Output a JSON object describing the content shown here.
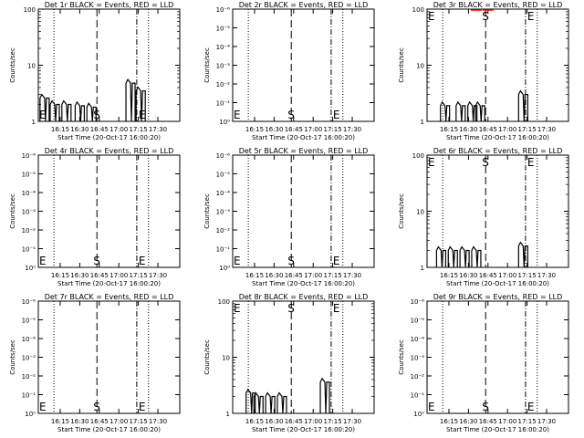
{
  "panels": [
    {
      "title": "Det 1r BLACK = Events, RED = LLD",
      "scale": "log",
      "yticks": [
        "1",
        "10",
        "100"
      ],
      "events": [
        {
          "t": 16.05,
          "v": 2.6
        },
        {
          "t": 16.18,
          "v": 2.0
        },
        {
          "t": 16.33,
          "v": 2.0
        },
        {
          "t": 16.5,
          "v": 1.9
        },
        {
          "t": 16.65,
          "v": 1.8
        },
        {
          "t": 17.15,
          "v": 4.8
        },
        {
          "t": 17.28,
          "v": 3.5
        }
      ],
      "lld": []
    },
    {
      "title": "Det 2r BLACK = Events, RED = LLD",
      "scale": "zero",
      "yticks": [
        "10⁰",
        "10⁻¹",
        "10⁻²",
        "10⁻³",
        "10⁻⁴",
        "10⁻⁵",
        "10⁻⁶"
      ],
      "events": [],
      "lld": []
    },
    {
      "title": "Det 3r BLACK = Events, RED = LLD",
      "scale": "log",
      "yticks": [
        "1",
        "10",
        "100"
      ],
      "events": [
        {
          "t": 16.2,
          "v": 1.9
        },
        {
          "t": 16.4,
          "v": 1.9
        },
        {
          "t": 16.55,
          "v": 1.9
        },
        {
          "t": 16.65,
          "v": 1.9
        },
        {
          "t": 17.2,
          "v": 3.0
        }
      ],
      "lld": [
        {
          "t": 16.6,
          "v": 100
        },
        {
          "t": 16.75,
          "v": 100
        }
      ]
    },
    {
      "title": "Det 4r BLACK = Events, RED = LLD",
      "scale": "zero",
      "yticks": [
        "10⁰",
        "10⁻¹",
        "10⁻²",
        "10⁻³",
        "10⁻⁴",
        "10⁻⁵",
        "10⁻⁶"
      ],
      "events": [],
      "lld": []
    },
    {
      "title": "Det 5r BLACK = Events, RED = LLD",
      "scale": "zero",
      "yticks": [
        "10⁰",
        "10⁻¹",
        "10⁻²",
        "10⁻³",
        "10⁻⁴",
        "10⁻⁵",
        "10⁻⁶"
      ],
      "events": [],
      "lld": []
    },
    {
      "title": "Det 6r BLACK = Events, RED = LLD",
      "scale": "log",
      "yticks": [
        "1",
        "10",
        "100"
      ],
      "events": [
        {
          "t": 16.15,
          "v": 2.0
        },
        {
          "t": 16.3,
          "v": 2.0
        },
        {
          "t": 16.45,
          "v": 2.0
        },
        {
          "t": 16.6,
          "v": 2.0
        },
        {
          "t": 17.2,
          "v": 2.4
        }
      ],
      "lld": []
    },
    {
      "title": "Det 7r BLACK = Events, RED = LLD",
      "scale": "zero",
      "yticks": [
        "10⁰",
        "10⁻¹",
        "10⁻²",
        "10⁻³",
        "10⁻⁴",
        "10⁻⁵",
        "10⁻⁶"
      ],
      "events": [],
      "lld": []
    },
    {
      "title": "Det 8r BLACK = Events, RED = LLD",
      "scale": "log",
      "yticks": [
        "1",
        "10",
        "100"
      ],
      "events": [
        {
          "t": 16.2,
          "v": 2.3
        },
        {
          "t": 16.3,
          "v": 2.0
        },
        {
          "t": 16.45,
          "v": 2.0
        },
        {
          "t": 16.6,
          "v": 2.0
        },
        {
          "t": 17.15,
          "v": 3.6
        }
      ],
      "lld": []
    },
    {
      "title": "Det 9r BLACK = Events, RED = LLD",
      "scale": "zero",
      "yticks": [
        "10⁰",
        "10⁻¹",
        "10⁻²",
        "10⁻³",
        "10⁻⁴",
        "10⁻⁵",
        "10⁻⁶"
      ],
      "events": [],
      "lld": []
    }
  ],
  "ylabel": "Counts/sec",
  "xlabel": "Start Time (20-Oct-17 16:00:20)",
  "xticks": [
    "16:15",
    "16:30",
    "16:45",
    "17:00",
    "17:15",
    "17:30"
  ],
  "markers": {
    "start": "E",
    "sun": "S",
    "end": "E"
  },
  "colors": {
    "events": "#000000",
    "lld": "#ff0000",
    "axes": "#000000"
  },
  "chart_data": [
    {
      "type": "line",
      "title": "Det 1r BLACK = Events, RED = LLD",
      "xlabel": "Start Time (20-Oct-17 16:00:20)",
      "ylabel": "Counts/sec",
      "yscale": "log",
      "ylim": [
        1,
        100
      ],
      "series": [
        {
          "name": "Events",
          "x": [
            "16:06",
            "16:11",
            "16:20",
            "16:30",
            "16:39",
            "17:09",
            "17:17"
          ],
          "values": [
            2.6,
            2.0,
            2.0,
            1.9,
            1.8,
            4.8,
            3.5
          ]
        }
      ]
    },
    {
      "type": "line",
      "title": "Det 2r BLACK = Events, RED = LLD",
      "xlabel": "Start Time (20-Oct-17 16:00:20)",
      "ylabel": "Counts/sec",
      "series": []
    },
    {
      "type": "line",
      "title": "Det 3r BLACK = Events, RED = LLD",
      "xlabel": "Start Time (20-Oct-17 16:00:20)",
      "ylabel": "Counts/sec",
      "yscale": "log",
      "ylim": [
        1,
        100
      ],
      "series": [
        {
          "name": "Events",
          "x": [
            "16:12",
            "16:24",
            "16:33",
            "16:39",
            "17:12"
          ],
          "values": [
            1.9,
            1.9,
            1.9,
            1.9,
            3.0
          ]
        },
        {
          "name": "LLD",
          "x": [
            "16:36",
            "16:45"
          ],
          "values": [
            100,
            100
          ]
        }
      ]
    },
    {
      "type": "line",
      "title": "Det 4r BLACK = Events, RED = LLD",
      "xlabel": "Start Time (20-Oct-17 16:00:20)",
      "ylabel": "Counts/sec",
      "series": []
    },
    {
      "type": "line",
      "title": "Det 5r BLACK = Events, RED = LLD",
      "xlabel": "Start Time (20-Oct-17 16:00:20)",
      "ylabel": "Counts/sec",
      "series": []
    },
    {
      "type": "line",
      "title": "Det 6r BLACK = Events, RED = LLD",
      "xlabel": "Start Time (20-Oct-17 16:00:20)",
      "ylabel": "Counts/sec",
      "yscale": "log",
      "ylim": [
        1,
        100
      ],
      "series": [
        {
          "name": "Events",
          "x": [
            "16:09",
            "16:18",
            "16:27",
            "16:36",
            "17:12"
          ],
          "values": [
            2.0,
            2.0,
            2.0,
            2.0,
            2.4
          ]
        }
      ]
    },
    {
      "type": "line",
      "title": "Det 7r BLACK = Events, RED = LLD",
      "xlabel": "Start Time (20-Oct-17 16:00:20)",
      "ylabel": "Counts/sec",
      "series": []
    },
    {
      "type": "line",
      "title": "Det 8r BLACK = Events, RED = LLD",
      "xlabel": "Start Time (20-Oct-17 16:00:20)",
      "ylabel": "Counts/sec",
      "yscale": "log",
      "ylim": [
        1,
        100
      ],
      "series": [
        {
          "name": "Events",
          "x": [
            "16:12",
            "16:18",
            "16:27",
            "16:36",
            "17:09"
          ],
          "values": [
            2.3,
            2.0,
            2.0,
            2.0,
            3.6
          ]
        }
      ]
    },
    {
      "type": "line",
      "title": "Det 9r BLACK = Events, RED = LLD",
      "xlabel": "Start Time (20-Oct-17 16:00:20)",
      "ylabel": "Counts/sec",
      "series": []
    }
  ]
}
